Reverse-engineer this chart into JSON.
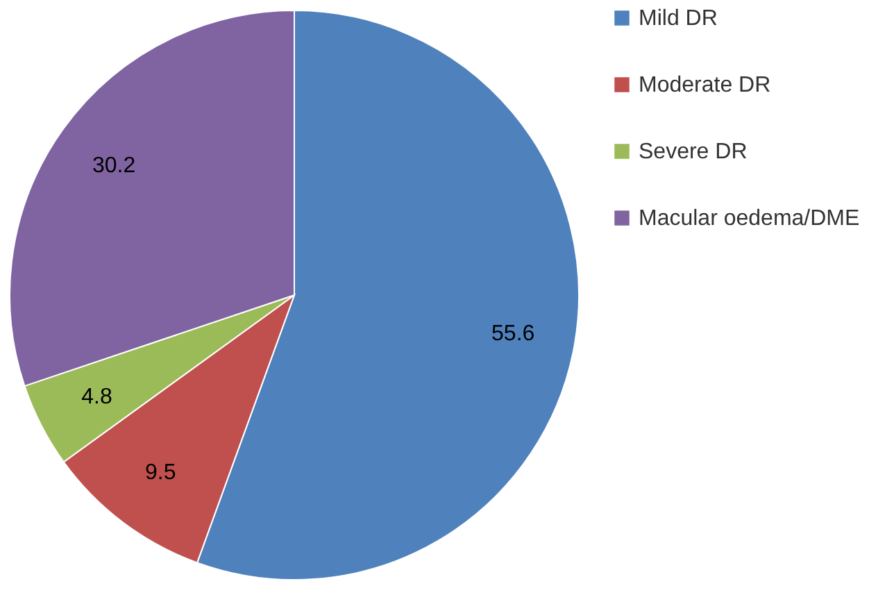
{
  "chart_data": {
    "type": "pie",
    "categories": [
      "Mild  DR",
      "Moderate DR",
      "Severe DR",
      "Macular oedema/DME"
    ],
    "values": [
      55.6,
      9.5,
      4.8,
      30.2
    ],
    "colors": [
      "#4f81bd",
      "#c0504d",
      "#9bbb59",
      "#8064a2"
    ],
    "data_labels": true,
    "legend": "right"
  }
}
